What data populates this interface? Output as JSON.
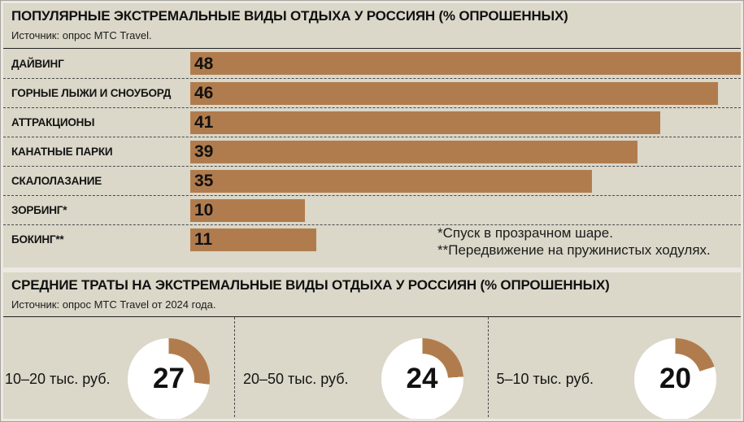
{
  "colors": {
    "panel_bg": "#dbd7c9",
    "bar": "#b17c4d",
    "donut_ring": "#ffffff",
    "text": "#141414"
  },
  "top_panel": {
    "title": "ПОПУЛЯРНЫЕ ЭКСТРЕМАЛЬНЫЕ ВИДЫ ОТДЫХА У РОССИЯН (% ОПРОШЕННЫХ)",
    "source": "Источник: опрос МТС Travel.",
    "footnote1": "*Спуск в прозрачном шаре.",
    "footnote2": "**Передвижение на пружинистых ходулях."
  },
  "bottom_panel": {
    "title": "СРЕДНИЕ ТРАТЫ НА ЭКСТРЕМАЛЬНЫЕ ВИДЫ ОТДЫХА У РОССИЯН (% ОПРОШЕННЫХ)",
    "source": "Источник: опрос МТС Travel от 2024 года."
  },
  "chart_data": [
    {
      "type": "bar",
      "orientation": "horizontal",
      "title": "ПОПУЛЯРНЫЕ ЭКСТРЕМАЛЬНЫЕ ВИДЫ ОТДЫХА У РОССИЯН (% ОПРОШЕННЫХ)",
      "source": "Источник: опрос МТС Travel.",
      "unit": "% опрошенных",
      "categories": [
        "ДАЙВИНГ",
        "ГОРНЫЕ ЛЫЖИ И СНОУБОРД",
        "АТТРАКЦИОНЫ",
        "КАНАТНЫЕ ПАРКИ",
        "СКАЛОЛАЗАНИЕ",
        "ЗОРБИНГ*",
        "БОКИНГ**"
      ],
      "values": [
        48,
        46,
        41,
        39,
        35,
        10,
        11
      ],
      "xlim": [
        0,
        48
      ],
      "bar_color": "#b17c4d",
      "value_labels": true,
      "grid": false,
      "footnotes": [
        "*Спуск в прозрачном шаре.",
        "**Передвижение на пружинистых ходулях."
      ]
    },
    {
      "type": "pie",
      "variant": "donut",
      "title": "СРЕДНИЕ ТРАТЫ НА ЭКСТРЕМАЛЬНЫЕ ВИДЫ ОТДЫХА У РОССИЯН (% ОПРОШЕННЫХ)",
      "source": "Источник: опрос МТС Travel от 2024 года.",
      "unit": "% опрошенных",
      "segment_color": "#b17c4d",
      "ring_color": "#ffffff",
      "segment_start": "12 o'clock, clockwise",
      "items": [
        {
          "label": "10–20 тыс. руб.",
          "value": 27
        },
        {
          "label": "20–50 тыс. руб.",
          "value": 24
        },
        {
          "label": "5–10 тыс. руб.",
          "value": 20
        }
      ]
    }
  ]
}
